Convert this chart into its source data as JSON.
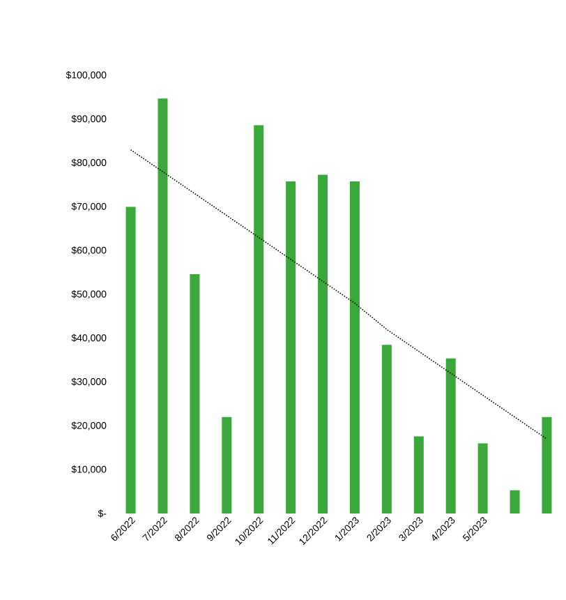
{
  "chart_data": {
    "type": "bar",
    "categories": [
      "6/2022",
      "7/2022",
      "8/2022",
      "9/2022",
      "10/2022",
      "11/2022",
      "12/2022",
      "1/2023",
      "2/2023",
      "3/2023",
      "4/2023",
      "5/2023",
      null,
      null
    ],
    "series": [
      {
        "color": "#3aa83a",
        "values": [
          70000,
          94700,
          54600,
          22000,
          88600,
          75800,
          77300,
          75800,
          38500,
          17600,
          35400,
          16000,
          5300,
          22000
        ]
      },
      {
        "type": "line",
        "color": "#000000",
        "line_style": "dotted",
        "marker": "none",
        "values": [
          83000,
          78000,
          73000,
          68000,
          63000,
          58000,
          53000,
          48000,
          42000,
          37000,
          32000,
          27000,
          22000,
          17000
        ]
      }
    ],
    "ylim": [
      0,
      100000
    ],
    "yticks": [
      {
        "value": 0,
        "label": "$-"
      },
      {
        "value": 10000,
        "label": "$10,000"
      },
      {
        "value": 20000,
        "label": "$20,000"
      },
      {
        "value": 30000,
        "label": "$30,000"
      },
      {
        "value": 40000,
        "label": "$40,000"
      },
      {
        "value": 50000,
        "label": "$50,000"
      },
      {
        "value": 60000,
        "label": "$60,000"
      },
      {
        "value": 70000,
        "label": "$70,000"
      },
      {
        "value": 80000,
        "label": "$80,000"
      },
      {
        "value": 90000,
        "label": "$90,000"
      },
      {
        "value": 100000,
        "label": "$100,000"
      }
    ],
    "grid": false
  }
}
